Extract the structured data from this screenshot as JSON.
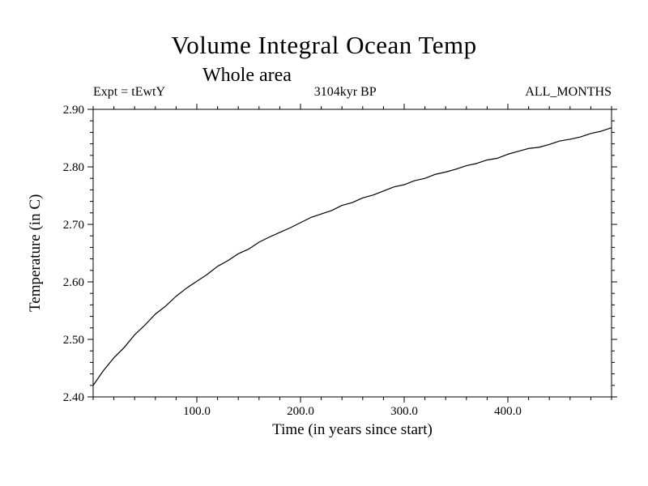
{
  "chart_data": {
    "type": "line",
    "title": "Volume Integral Ocean Temp",
    "subtitle": "Whole area",
    "annotations": {
      "left": "Expt = tEwtY",
      "center": "3104kyr BP",
      "right": "ALL_MONTHS"
    },
    "xlabel": "Time (in years since start)",
    "ylabel": "Temperature (in C)",
    "xlim": [
      0,
      500
    ],
    "ylim": [
      2.4,
      2.9
    ],
    "x_ticks": [
      100,
      200,
      300,
      400
    ],
    "x_tick_labels": [
      "100.0",
      "200.0",
      "300.0",
      "400.0"
    ],
    "y_ticks": [
      2.4,
      2.5,
      2.6,
      2.7,
      2.8,
      2.9
    ],
    "y_tick_labels": [
      "2.40",
      "2.50",
      "2.60",
      "2.70",
      "2.80",
      "2.90"
    ],
    "x_minor_step": 20,
    "y_minor_step": 0.02,
    "line_color": "#000000",
    "background_color": "#ffffff",
    "legend": "none",
    "grid": "off",
    "series": [
      {
        "name": "volume-integral-ocean-temp",
        "x": [
          0,
          10,
          20,
          30,
          40,
          50,
          60,
          70,
          80,
          90,
          100,
          110,
          120,
          130,
          140,
          150,
          160,
          170,
          180,
          190,
          200,
          210,
          220,
          230,
          240,
          250,
          260,
          270,
          280,
          290,
          300,
          310,
          320,
          330,
          340,
          350,
          360,
          370,
          380,
          390,
          400,
          410,
          420,
          430,
          440,
          450,
          460,
          470,
          480,
          490,
          500
        ],
        "y": [
          2.42,
          2.446,
          2.468,
          2.486,
          2.508,
          2.525,
          2.544,
          2.558,
          2.575,
          2.589,
          2.601,
          2.613,
          2.627,
          2.637,
          2.649,
          2.657,
          2.669,
          2.678,
          2.686,
          2.694,
          2.703,
          2.712,
          2.718,
          2.724,
          2.733,
          2.738,
          2.746,
          2.751,
          2.758,
          2.765,
          2.769,
          2.776,
          2.78,
          2.787,
          2.791,
          2.796,
          2.802,
          2.806,
          2.812,
          2.815,
          2.822,
          2.827,
          2.832,
          2.834,
          2.839,
          2.845,
          2.848,
          2.852,
          2.858,
          2.862,
          2.868
        ]
      }
    ]
  }
}
